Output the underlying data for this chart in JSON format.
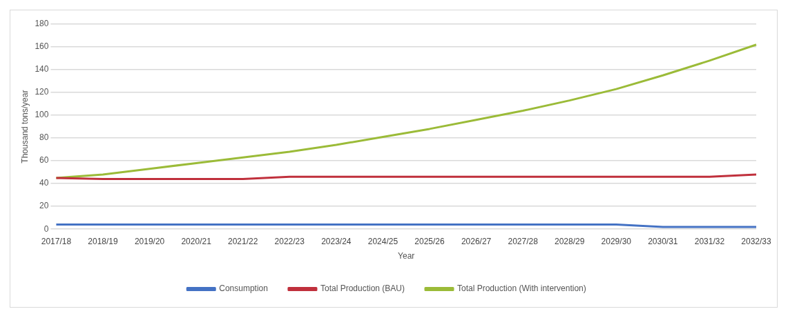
{
  "chart_data": {
    "type": "line",
    "xlabel": "Year",
    "ylabel": "Thousand tons/year",
    "categories": [
      "2017/18",
      "2018/19",
      "2019/20",
      "2020/21",
      "2021/22",
      "2022/23",
      "2023/24",
      "2024/25",
      "2025/26",
      "2026/27",
      "2027/28",
      "2028/29",
      "2029/30",
      "2030/31",
      "2031/32",
      "2032/33"
    ],
    "series": [
      {
        "name": "Consumption",
        "color": "#4472c4",
        "values": [
          4,
          4,
          4,
          4,
          4,
          4,
          4,
          4,
          4,
          4,
          4,
          4,
          4,
          2,
          2,
          2
        ]
      },
      {
        "name": "Total Production (BAU)",
        "color": "#c0303c",
        "values": [
          45,
          44,
          44,
          44,
          44,
          46,
          46,
          46,
          46,
          46,
          46,
          46,
          46,
          46,
          46,
          48
        ]
      },
      {
        "name": "Total Production (With intervention)",
        "color": "#9bbb38",
        "values": [
          45,
          48,
          53,
          58,
          63,
          68,
          74,
          81,
          88,
          96,
          104,
          113,
          123,
          135,
          148,
          162
        ]
      }
    ],
    "ylim": [
      0,
      180
    ],
    "yticks": [
      0,
      20,
      40,
      60,
      80,
      100,
      120,
      140,
      160,
      180
    ],
    "grid": "y",
    "legend": "bottom",
    "marker": "none",
    "line_style": "solid"
  }
}
